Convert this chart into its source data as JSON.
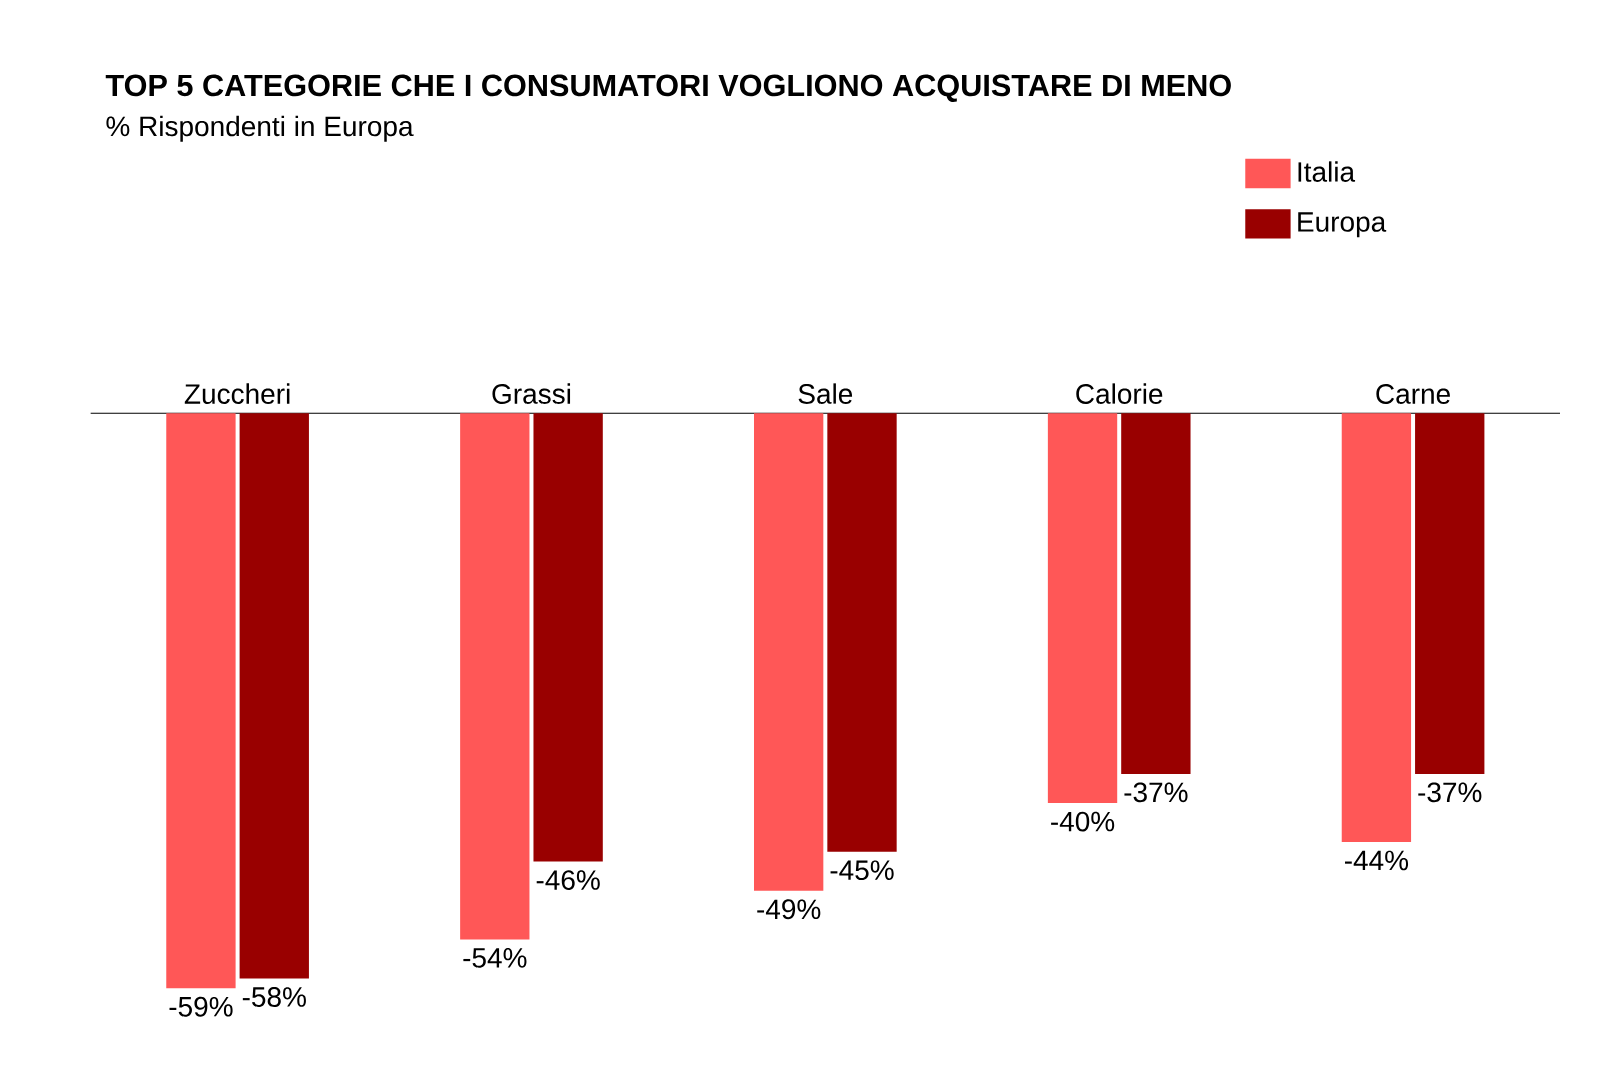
{
  "chart_data": {
    "type": "bar",
    "title": "TOP 5 CATEGORIE CHE I CONSUMATORI VOGLIONO ACQUISTARE DI MENO",
    "subtitle": "% Rispondenti in Europa",
    "categories": [
      "Zuccheri",
      "Grassi",
      "Sale",
      "Calorie",
      "Carne"
    ],
    "series": [
      {
        "name": "Italia",
        "color": "#ff5757",
        "values": [
          -59,
          -54,
          -49,
          -40,
          -44
        ],
        "value_labels": [
          "-59%",
          "-54%",
          "-49%",
          "-40%",
          "-44%"
        ]
      },
      {
        "name": "Europa",
        "color": "#990000",
        "values": [
          -58,
          -46,
          -45,
          -37,
          -37
        ],
        "value_labels": [
          "-58%",
          "-46%",
          "-45%",
          "-37%",
          "-37%"
        ]
      }
    ],
    "legend": "top right",
    "tick_labels": "x"
  }
}
